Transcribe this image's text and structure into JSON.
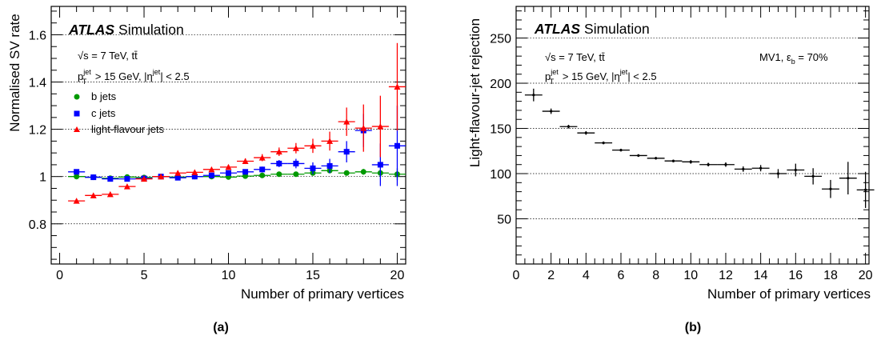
{
  "chart_data": [
    {
      "type": "scatter",
      "panel_label": "(a)",
      "xlabel": "Number of primary vertices",
      "ylabel": "Normalised SV rate",
      "xlim": [
        -0.5,
        20.5
      ],
      "ylim": [
        0.63,
        1.72
      ],
      "xticks": [
        0,
        5,
        10,
        15,
        20
      ],
      "xtick_labels": [
        "0",
        "5",
        "10",
        "15",
        "20"
      ],
      "yticks": [
        0.8,
        1.0,
        1.2,
        1.4,
        1.6
      ],
      "ytick_labels": [
        "0.8",
        "1",
        "1.2",
        "1.4",
        "1.6"
      ],
      "grid": "horizontal dotted at major y ticks",
      "legend": "top-left",
      "annotation": {
        "atlas": "ATLAS",
        "simulation": "Simulation",
        "line1": {
          "sqrt": "√s",
          "rest": " = 7 TeV, tt̄"
        },
        "line2": {
          "p": "p",
          "sup_jet": "jet",
          "sub_T": "T",
          "mid": " > 15 GeV, |η",
          "sup_jet2": "jet",
          "end": "| < 2.5"
        }
      },
      "series": [
        {
          "name": "b jets",
          "marker": "circle",
          "color": "#009900",
          "x": [
            1,
            2,
            3,
            4,
            5,
            6,
            7,
            8,
            9,
            10,
            11,
            12,
            13,
            14,
            15,
            16,
            17,
            18,
            19,
            20
          ],
          "y": [
            1.0,
            0.997,
            0.993,
            0.998,
            0.996,
            1.0,
            0.998,
            1.0,
            1.0,
            0.998,
            1.002,
            1.005,
            1.01,
            1.01,
            1.015,
            1.025,
            1.015,
            1.02,
            1.015,
            1.01
          ],
          "yerr": [
            0.004,
            0.003,
            0.003,
            0.003,
            0.003,
            0.003,
            0.003,
            0.003,
            0.003,
            0.003,
            0.004,
            0.004,
            0.005,
            0.005,
            0.006,
            0.008,
            0.01,
            0.012,
            0.015,
            0.025
          ]
        },
        {
          "name": "c jets",
          "marker": "square",
          "color": "#0000ff",
          "x": [
            1,
            2,
            3,
            4,
            5,
            6,
            7,
            8,
            9,
            10,
            11,
            12,
            13,
            14,
            15,
            16,
            17,
            18,
            19,
            20
          ],
          "y": [
            1.02,
            0.997,
            0.99,
            0.99,
            0.992,
            1.0,
            0.995,
            1.0,
            1.005,
            1.015,
            1.02,
            1.03,
            1.055,
            1.055,
            1.035,
            1.045,
            1.105,
            1.195,
            1.05,
            1.13
          ],
          "yerr": [
            0.01,
            0.005,
            0.005,
            0.005,
            0.005,
            0.005,
            0.005,
            0.006,
            0.007,
            0.008,
            0.01,
            0.012,
            0.015,
            0.02,
            0.025,
            0.03,
            0.045,
            0.07,
            0.09,
            0.17
          ]
        },
        {
          "name": "light-flavour jets",
          "marker": "triangle",
          "color": "#ff0000",
          "x": [
            1,
            2,
            3,
            4,
            5,
            6,
            7,
            8,
            9,
            10,
            11,
            12,
            13,
            14,
            15,
            16,
            17,
            18,
            19,
            20
          ],
          "y": [
            0.897,
            0.92,
            0.925,
            0.958,
            0.99,
            1.0,
            1.015,
            1.018,
            1.03,
            1.04,
            1.065,
            1.08,
            1.105,
            1.12,
            1.13,
            1.15,
            1.232,
            1.205,
            1.212,
            1.38
          ],
          "yerr": [
            0.006,
            0.005,
            0.005,
            0.005,
            0.005,
            0.005,
            0.006,
            0.007,
            0.009,
            0.01,
            0.012,
            0.015,
            0.018,
            0.022,
            0.03,
            0.04,
            0.06,
            0.1,
            0.13,
            0.185
          ]
        }
      ]
    },
    {
      "type": "scatter",
      "panel_label": "(b)",
      "xlabel": "Number of primary vertices",
      "ylabel": "Light-flavour-jet rejection",
      "xlim": [
        0,
        20.2
      ],
      "ylim": [
        0,
        285
      ],
      "xticks": [
        0,
        2,
        4,
        6,
        8,
        10,
        12,
        14,
        16,
        18,
        20
      ],
      "xtick_labels": [
        "0",
        "2",
        "4",
        "6",
        "8",
        "10",
        "12",
        "14",
        "16",
        "18",
        "20"
      ],
      "yticks": [
        50,
        100,
        150,
        200,
        250
      ],
      "ytick_labels": [
        "50",
        "100",
        "150",
        "200",
        "250"
      ],
      "grid": "horizontal dotted at major y ticks",
      "annotation": {
        "atlas": "ATLAS",
        "simulation": "Simulation",
        "line1": {
          "sqrt": "√s",
          "rest": " = 7 TeV, tt̄"
        },
        "line2": {
          "p": "p",
          "sup_jet": "jet",
          "sub_T": "T",
          "mid": " > 15 GeV, |η",
          "sup_jet2": "jet",
          "end": "| < 2.5"
        },
        "tagger": {
          "pre": "MV1, ε",
          "sub": "b",
          "post": " = 70%"
        }
      },
      "series": [
        {
          "marker": "point",
          "color": "#000000",
          "x": [
            1,
            2,
            3,
            4,
            5,
            6,
            7,
            8,
            9,
            10,
            11,
            12,
            13,
            14,
            15,
            16,
            17,
            18,
            19,
            20
          ],
          "y": [
            187,
            169,
            152,
            145,
            134,
            126,
            120,
            117,
            114,
            113,
            110,
            110,
            105,
            106,
            100,
            104,
            97,
            83,
            95,
            82
          ],
          "yerr": [
            7,
            3,
            2,
            2,
            1.5,
            1.5,
            1.5,
            1.5,
            1.5,
            2,
            2,
            2.5,
            3,
            3.5,
            5,
            7,
            9,
            10,
            18,
            20
          ],
          "xerr": [
            0.5,
            0.5,
            0.5,
            0.5,
            0.5,
            0.5,
            0.5,
            0.5,
            0.5,
            0.5,
            0.5,
            0.5,
            0.5,
            0.5,
            0.5,
            0.5,
            0.5,
            0.5,
            0.5,
            0.5
          ]
        }
      ]
    }
  ]
}
